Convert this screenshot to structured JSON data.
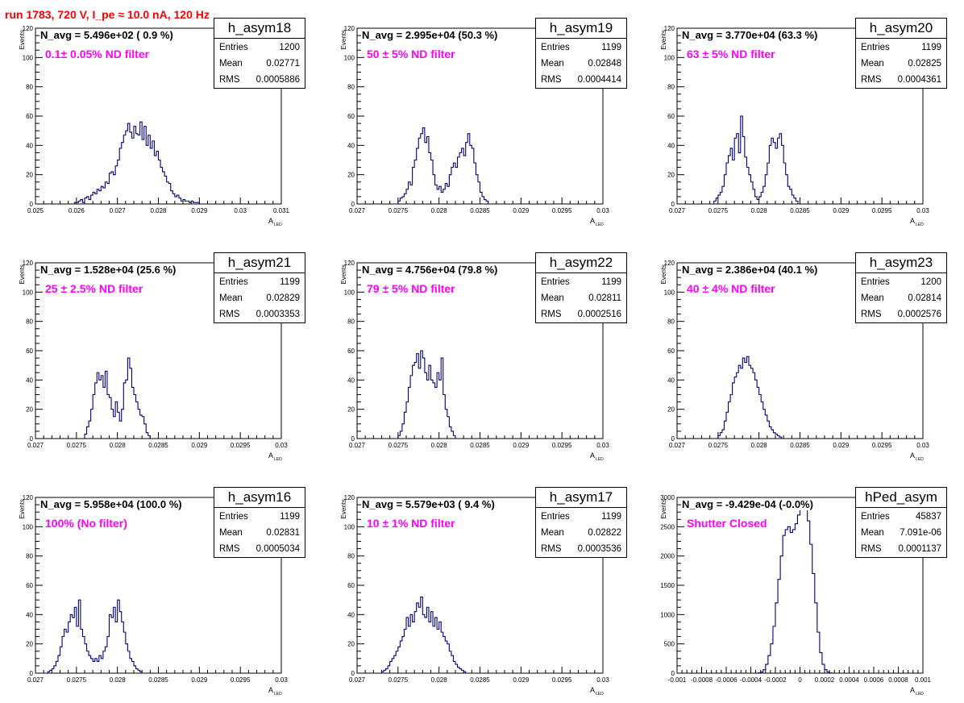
{
  "title": "run 1783,   720 V, I_pe ≈ 10.0 nA, 120 Hz",
  "stat_labels": {
    "entries": "Entries",
    "mean": "Mean",
    "rms": "RMS"
  },
  "chart_data": [
    {
      "type": "histogram",
      "hist_name": "h_asym18",
      "n_avg_label": "N_avg = 5.496e+02 ( 0.9 %)",
      "filter_label": "0.1± 0.05% ND filter",
      "entries": "1200",
      "mean": "0.02771",
      "rms": "0.0005886",
      "xlabel": "A",
      "xlabel_sub": "LED",
      "ylabel": "Events",
      "xlim": [
        0.025,
        0.031
      ],
      "ylim": [
        0,
        120
      ],
      "xticks": [
        "0.025",
        "0.026",
        "0.027",
        "0.028",
        "0.029",
        "0.03",
        "0.031"
      ],
      "yticks": [
        "0",
        "20",
        "40",
        "60",
        "80",
        "100",
        "120"
      ],
      "bin_width": 5e-05,
      "bins_start": 0.02595,
      "counts": [
        1,
        1,
        2,
        3,
        1,
        4,
        5,
        3,
        6,
        8,
        7,
        10,
        9,
        12,
        11,
        15,
        14,
        21,
        22,
        20,
        26,
        30,
        38,
        42,
        47,
        50,
        55,
        49,
        45,
        53,
        48,
        47,
        56,
        44,
        53,
        40,
        47,
        38,
        43,
        33,
        36,
        30,
        25,
        22,
        19,
        15,
        14,
        9,
        7,
        5,
        6,
        4,
        2,
        3,
        2,
        2,
        1,
        2,
        1,
        1,
        1
      ]
    },
    {
      "type": "histogram",
      "hist_name": "h_asym19",
      "n_avg_label": "N_avg = 2.995e+04 (50.3 %)",
      "filter_label": "50 ± 5% ND filter",
      "entries": "1199",
      "mean": "0.02848",
      "rms": "0.0004414",
      "xlabel": "A",
      "xlabel_sub": "LED",
      "ylabel": "Events",
      "xlim": [
        0.027,
        0.03
      ],
      "ylim": [
        0,
        120
      ],
      "xticks": [
        "0.027",
        "0.0275",
        "0.028",
        "0.0285",
        "0.029",
        "0.0295",
        "0.03"
      ],
      "yticks": [
        "0",
        "20",
        "40",
        "60",
        "80",
        "100",
        "120"
      ],
      "bin_width": 2.5e-05,
      "bins_start": 0.0275,
      "counts": [
        2,
        4,
        5,
        7,
        10,
        15,
        13,
        25,
        30,
        38,
        45,
        48,
        52,
        42,
        46,
        35,
        30,
        20,
        13,
        10,
        12,
        8,
        10,
        14,
        12,
        20,
        25,
        28,
        25,
        32,
        35,
        38,
        33,
        42,
        48,
        40,
        38,
        28,
        20,
        15,
        8,
        5,
        3,
        2
      ]
    },
    {
      "type": "histogram",
      "hist_name": "h_asym20",
      "n_avg_label": "N_avg = 3.770e+04 (63.3 %)",
      "filter_label": "63 ± 5% ND filter",
      "entries": "1199",
      "mean": "0.02825",
      "rms": "0.0004361",
      "xlabel": "A",
      "xlabel_sub": "LED",
      "ylabel": "Events",
      "xlim": [
        0.027,
        0.03
      ],
      "ylim": [
        0,
        120
      ],
      "xticks": [
        "0.027",
        "0.0275",
        "0.028",
        "0.0285",
        "0.029",
        "0.0295",
        "0.03"
      ],
      "yticks": [
        "0",
        "20",
        "40",
        "60",
        "80",
        "100",
        "120"
      ],
      "bin_width": 2.5e-05,
      "bins_start": 0.02745,
      "counts": [
        2,
        4,
        6,
        8,
        12,
        20,
        28,
        33,
        38,
        30,
        45,
        48,
        35,
        60,
        46,
        32,
        25,
        20,
        15,
        10,
        5,
        3,
        5,
        8,
        12,
        20,
        28,
        40,
        45,
        42,
        38,
        45,
        48,
        40,
        28,
        20,
        12,
        10,
        6,
        4,
        2
      ]
    },
    {
      "type": "histogram",
      "hist_name": "h_asym21",
      "n_avg_label": "N_avg = 1.528e+04 (25.6 %)",
      "filter_label": "25 ± 2.5% ND filter",
      "entries": "1199",
      "mean": "0.02829",
      "rms": "0.0003353",
      "xlabel": "A",
      "xlabel_sub": "LED",
      "ylabel": "Events",
      "xlim": [
        0.027,
        0.03
      ],
      "ylim": [
        0,
        120
      ],
      "xticks": [
        "0.027",
        "0.0275",
        "0.028",
        "0.0285",
        "0.029",
        "0.0295",
        "0.03"
      ],
      "yticks": [
        "0",
        "20",
        "40",
        "60",
        "80",
        "100",
        "120"
      ],
      "bin_width": 2.5e-05,
      "bins_start": 0.0276,
      "counts": [
        3,
        8,
        12,
        20,
        30,
        38,
        45,
        40,
        43,
        35,
        46,
        30,
        28,
        20,
        15,
        25,
        18,
        12,
        20,
        38,
        40,
        55,
        48,
        35,
        30,
        25,
        20,
        16,
        15,
        10,
        4,
        2
      ]
    },
    {
      "type": "histogram",
      "hist_name": "h_asym22",
      "n_avg_label": "N_avg = 4.756e+04 (79.8 %)",
      "filter_label": "79 ± 5% ND filter",
      "entries": "1199",
      "mean": "0.02811",
      "rms": "0.0002516",
      "xlabel": "A",
      "xlabel_sub": "LED",
      "ylabel": "Events",
      "xlim": [
        0.027,
        0.03
      ],
      "ylim": [
        0,
        120
      ],
      "xticks": [
        "0.027",
        "0.0275",
        "0.028",
        "0.0285",
        "0.029",
        "0.0295",
        "0.03"
      ],
      "yticks": [
        "0",
        "20",
        "40",
        "60",
        "80",
        "100",
        "120"
      ],
      "bin_width": 2.5e-05,
      "bins_start": 0.0275,
      "counts": [
        2,
        5,
        10,
        18,
        25,
        35,
        43,
        50,
        52,
        58,
        48,
        60,
        55,
        45,
        40,
        50,
        40,
        38,
        35,
        45,
        40,
        55,
        30,
        20,
        15,
        8,
        5,
        2
      ]
    },
    {
      "type": "histogram",
      "hist_name": "h_asym23",
      "n_avg_label": "N_avg = 2.386e+04 (40.1 %)",
      "filter_label": "40 ± 4% ND filter",
      "entries": "1200",
      "mean": "0.02814",
      "rms": "0.0002576",
      "xlabel": "A",
      "xlabel_sub": "LED",
      "ylabel": "Events",
      "xlim": [
        0.027,
        0.03
      ],
      "ylim": [
        0,
        120
      ],
      "xticks": [
        "0.027",
        "0.0275",
        "0.028",
        "0.0285",
        "0.029",
        "0.0295",
        "0.03"
      ],
      "yticks": [
        "0",
        "20",
        "40",
        "60",
        "80",
        "100",
        "120"
      ],
      "bin_width": 2.5e-05,
      "bins_start": 0.0275,
      "counts": [
        2,
        4,
        6,
        12,
        18,
        25,
        30,
        38,
        42,
        45,
        50,
        48,
        55,
        52,
        56,
        50,
        48,
        45,
        40,
        35,
        30,
        25,
        20,
        16,
        12,
        8,
        6,
        4,
        3,
        2,
        1
      ]
    },
    {
      "type": "histogram",
      "hist_name": "h_asym16",
      "n_avg_label": "N_avg = 5.958e+04 (100.0 %)",
      "filter_label": "100% (No filter)",
      "entries": "1199",
      "mean": "0.02831",
      "rms": "0.0005034",
      "xlabel": "A",
      "xlabel_sub": "LED",
      "ylabel": "Events",
      "xlim": [
        0.027,
        0.03
      ],
      "ylim": [
        0,
        120
      ],
      "xticks": [
        "0.027",
        "0.0275",
        "0.028",
        "0.0285",
        "0.029",
        "0.0295",
        "0.03"
      ],
      "yticks": [
        "0",
        "20",
        "40",
        "60",
        "80",
        "100",
        "120"
      ],
      "bin_width": 2.5e-05,
      "bins_start": 0.02715,
      "counts": [
        1,
        2,
        3,
        5,
        8,
        12,
        18,
        25,
        30,
        28,
        35,
        40,
        38,
        45,
        32,
        50,
        30,
        25,
        20,
        15,
        12,
        10,
        8,
        10,
        8,
        12,
        10,
        15,
        18,
        25,
        40,
        38,
        45,
        35,
        50,
        42,
        35,
        28,
        20,
        15,
        10,
        8,
        5,
        3,
        2,
        1
      ]
    },
    {
      "type": "histogram",
      "hist_name": "h_asym17",
      "n_avg_label": "N_avg = 5.579e+03 ( 9.4 %)",
      "filter_label": "10 ± 1% ND filter",
      "entries": "1199",
      "mean": "0.02822",
      "rms": "0.0003536",
      "xlabel": "A",
      "xlabel_sub": "LED",
      "ylabel": "Events",
      "xlim": [
        0.027,
        0.03
      ],
      "ylim": [
        0,
        120
      ],
      "xticks": [
        "0.027",
        "0.0275",
        "0.028",
        "0.0285",
        "0.029",
        "0.0295",
        "0.03"
      ],
      "yticks": [
        "0",
        "20",
        "40",
        "60",
        "80",
        "100",
        "120"
      ],
      "bin_width": 2.5e-05,
      "bins_start": 0.0273,
      "counts": [
        1,
        2,
        3,
        5,
        8,
        10,
        12,
        15,
        18,
        22,
        25,
        30,
        38,
        32,
        40,
        35,
        42,
        48,
        45,
        52,
        40,
        38,
        45,
        35,
        42,
        32,
        38,
        30,
        35,
        28,
        25,
        22,
        20,
        15,
        12,
        8,
        6,
        4,
        3,
        2,
        1
      ]
    },
    {
      "type": "histogram",
      "hist_name": "hPed_asym",
      "n_avg_label": "N_avg = -9.429e-04 (-0.0%)",
      "filter_label": "Shutter Closed",
      "entries": "45837",
      "mean": "7.091e-06",
      "rms": "0.0001137",
      "xlabel": "A",
      "xlabel_sub": "LED",
      "ylabel": "Events",
      "xlim": [
        -0.001,
        0.001
      ],
      "ylim": [
        0,
        3000
      ],
      "xticks": [
        "-0.001",
        "-0.0008",
        "-0.0006",
        "-0.0004",
        "-0.0002",
        "0",
        "0.0002",
        "0.0004",
        "0.0006",
        "0.0008",
        "0.001"
      ],
      "yticks": [
        "0",
        "500",
        "1000",
        "1500",
        "2000",
        "2500",
        "3000"
      ],
      "bin_width": 2e-05,
      "bins_start": -0.00034,
      "counts": [
        5,
        20,
        60,
        150,
        300,
        500,
        800,
        1200,
        1600,
        2000,
        2350,
        2450,
        2500,
        2400,
        2450,
        2550,
        2700,
        2800,
        2900,
        2850,
        2600,
        2200,
        1700,
        1200,
        700,
        350,
        150,
        60,
        20,
        5
      ]
    }
  ]
}
